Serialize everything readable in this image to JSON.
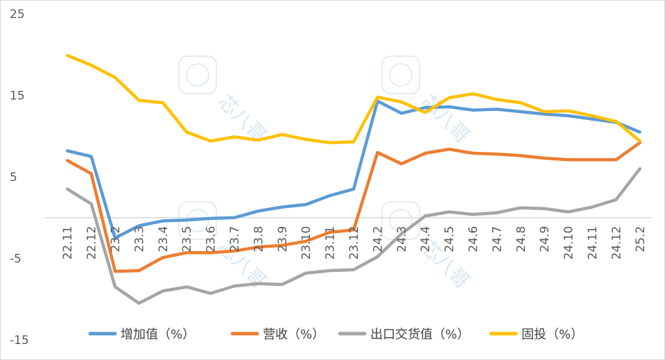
{
  "chart_data": {
    "type": "line",
    "categories": [
      "22.11",
      "22.12",
      "23.2",
      "23.3",
      "23.4",
      "23.5",
      "23.6",
      "23.7",
      "23.8",
      "23.9",
      "23.10",
      "23.11",
      "23.12",
      "24.2",
      "24.3",
      "24.4",
      "24.5",
      "24.6",
      "24.7",
      "24.8",
      "24.9",
      "24.10",
      "24.11",
      "24.12",
      "25.2"
    ],
    "ylim": [
      -15,
      25
    ],
    "yticks": [
      25,
      15,
      5,
      -5,
      -15
    ],
    "series": [
      {
        "name": "增加值（%）",
        "color": "#5b9bd5",
        "values": [
          8.2,
          7.5,
          -2.5,
          -1.0,
          -0.4,
          -0.3,
          -0.1,
          0.0,
          0.8,
          1.3,
          1.6,
          2.7,
          3.5,
          14.3,
          12.8,
          13.5,
          13.6,
          13.2,
          13.3,
          13.0,
          12.7,
          12.5,
          12.1,
          11.7,
          10.5
        ]
      },
      {
        "name": "营收（%）",
        "color": "#ed7d31",
        "values": [
          7.0,
          5.4,
          -6.6,
          -6.5,
          -4.9,
          -4.3,
          -4.3,
          -4.1,
          -3.6,
          -3.4,
          -2.9,
          -1.8,
          -1.5,
          8.0,
          6.6,
          7.9,
          8.4,
          7.9,
          7.8,
          7.6,
          7.3,
          7.1,
          7.1,
          7.1,
          9.2
        ]
      },
      {
        "name": "出口交货值（%）",
        "color": "#a5a5a5",
        "values": [
          3.5,
          1.7,
          -8.5,
          -10.5,
          -9.0,
          -8.5,
          -9.3,
          -8.4,
          -8.1,
          -8.2,
          -6.8,
          -6.5,
          -6.4,
          -4.8,
          -2.0,
          0.2,
          0.7,
          0.4,
          0.6,
          1.2,
          1.1,
          0.7,
          1.3,
          2.2,
          6.0
        ]
      },
      {
        "name": "固投（%）",
        "color": "#ffc000",
        "values": [
          19.9,
          18.7,
          17.2,
          14.4,
          14.1,
          10.5,
          9.4,
          9.9,
          9.5,
          10.2,
          9.6,
          9.2,
          9.3,
          14.8,
          14.2,
          12.9,
          14.7,
          15.2,
          14.5,
          14.1,
          13.0,
          13.1,
          12.5,
          11.8,
          9.4
        ]
      }
    ]
  },
  "watermark": {
    "text": "芯八哥",
    "icon": "logo-watermark"
  }
}
